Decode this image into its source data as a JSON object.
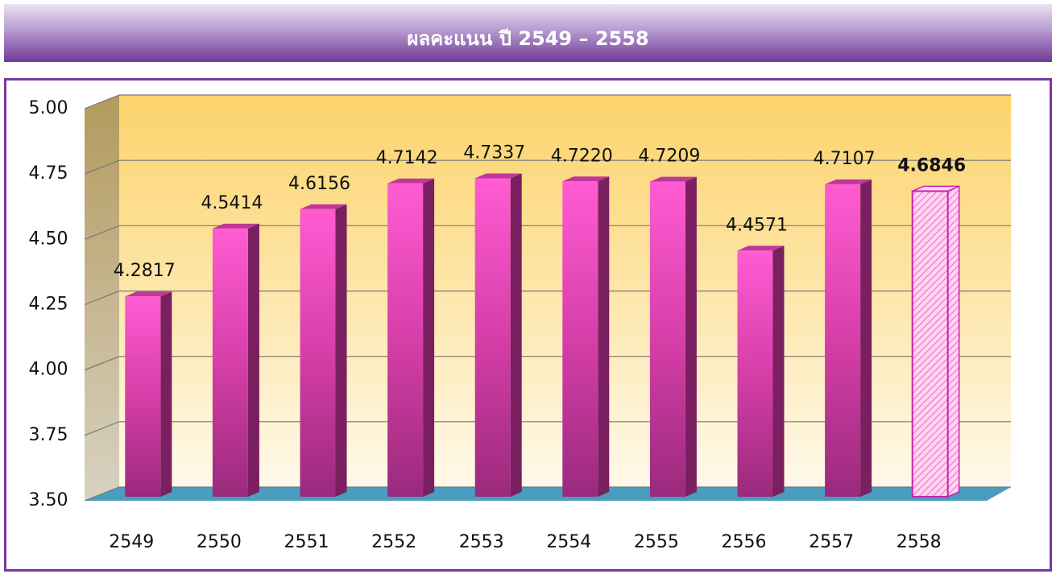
{
  "chart_data": {
    "type": "bar3d",
    "title": "ผลคะแนน ปี 2549 – 2558",
    "categories": [
      "2549",
      "2550",
      "2551",
      "2552",
      "2553",
      "2554",
      "2555",
      "2556",
      "2557",
      "2558"
    ],
    "values": [
      4.2817,
      4.5414,
      4.6156,
      4.7142,
      4.7337,
      4.722,
      4.7209,
      4.4571,
      4.7107,
      4.6846
    ],
    "value_labels": [
      "4.2817",
      "4.5414",
      "4.6156",
      "4.7142",
      "4.7337",
      "4.7220",
      "4.7209",
      "4.4571",
      "4.7107",
      "4.6846"
    ],
    "color": "#e040b8",
    "ylim": [
      3.5,
      5
    ],
    "yticks": [
      {
        "value": 3.5,
        "label": "3.50"
      },
      {
        "value": 3.75,
        "label": "3.75"
      },
      {
        "value": 4,
        "label": "4.00"
      },
      {
        "value": 4.25,
        "label": "4.25"
      },
      {
        "value": 4.5,
        "label": "4.50"
      },
      {
        "value": 4.75,
        "label": "4.75"
      },
      {
        "value": 5,
        "label": "5.00"
      }
    ],
    "grid": true
  }
}
